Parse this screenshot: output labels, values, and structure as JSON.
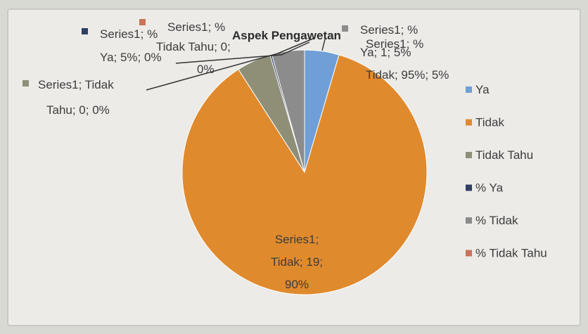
{
  "chart_data": {
    "type": "pie",
    "title": "Aspek Pengawetan",
    "categories": [
      "Ya",
      "Tidak",
      "Tidak Tahu",
      "% Ya",
      "% Tidak",
      "% Tidak Tahu"
    ],
    "series": [
      {
        "name": "Series1",
        "values": [
          1,
          19,
          1,
          0.05,
          0.95,
          0
        ]
      }
    ],
    "colors": [
      "#6f9fd6",
      "#e08a2e",
      "#8f8f78",
      "#2f3f66",
      "#8c8c8c",
      "#c9735a"
    ],
    "legend_position": "right",
    "data_labels": [
      {
        "lines": [
          "Series1; %",
          "Ya; 5%; 0%"
        ]
      },
      {
        "lines": [
          "Series1; %",
          "Tidak Tahu; 0;",
          "0%"
        ]
      },
      {
        "lines": [
          "Series1; %",
          "Ya; 1; 5%"
        ]
      },
      {
        "lines": [
          "Series1; %",
          "Tidak; 95%; 5%"
        ]
      },
      {
        "lines": [
          "Series1; Tidak",
          "Tahu; 0; 0%"
        ]
      },
      {
        "lines": [
          "Series1;",
          "Tidak; 19;",
          "90%"
        ]
      }
    ]
  }
}
